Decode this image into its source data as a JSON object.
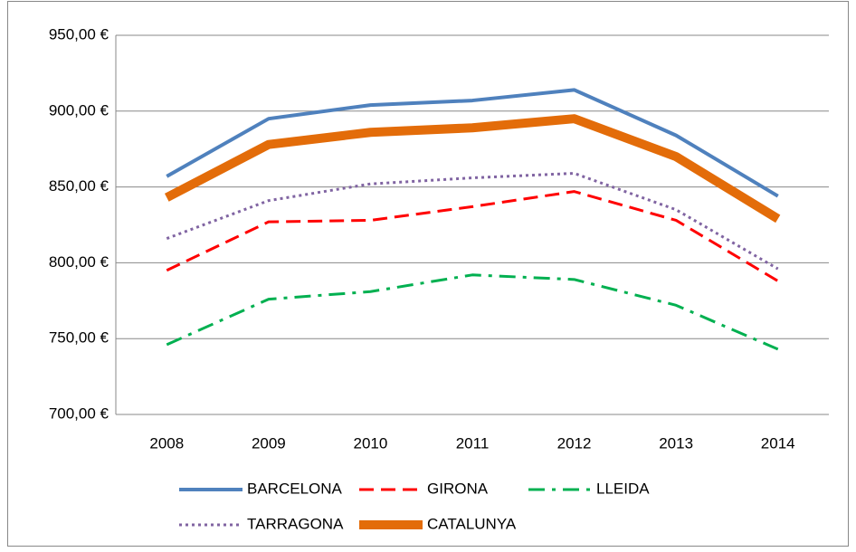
{
  "chart_data": {
    "type": "line",
    "categories": [
      "2008",
      "2009",
      "2010",
      "2011",
      "2012",
      "2013",
      "2014"
    ],
    "series": [
      {
        "name": "BARCELONA",
        "color": "#4f81bd",
        "style": "solid",
        "values": [
          857,
          895,
          904,
          907,
          914,
          884,
          844
        ]
      },
      {
        "name": "GIRONA",
        "color": "#ff0000",
        "style": "dashed",
        "values": [
          795,
          827,
          828,
          837,
          847,
          828,
          788
        ]
      },
      {
        "name": "LLEIDA",
        "color": "#00b050",
        "style": "dashdot",
        "values": [
          746,
          776,
          781,
          792,
          789,
          772,
          743
        ]
      },
      {
        "name": "TARRAGONA",
        "color": "#8064a2",
        "style": "dotted",
        "values": [
          816,
          841,
          852,
          856,
          859,
          835,
          796
        ]
      },
      {
        "name": "CATALUNYA",
        "color": "#e36c09",
        "style": "solid",
        "values": [
          843,
          878,
          886,
          889,
          895,
          870,
          829
        ]
      }
    ],
    "ylim": [
      700,
      950
    ],
    "yticks": [
      {
        "value": 700,
        "label": "700,00 €"
      },
      {
        "value": 750,
        "label": "750,00 €"
      },
      {
        "value": 800,
        "label": "800,00 €"
      },
      {
        "value": 850,
        "label": "850,00 €"
      },
      {
        "value": 900,
        "label": "900,00 €"
      },
      {
        "value": 950,
        "label": "950,00 €"
      }
    ],
    "grid": true,
    "legend": "bottom"
  }
}
